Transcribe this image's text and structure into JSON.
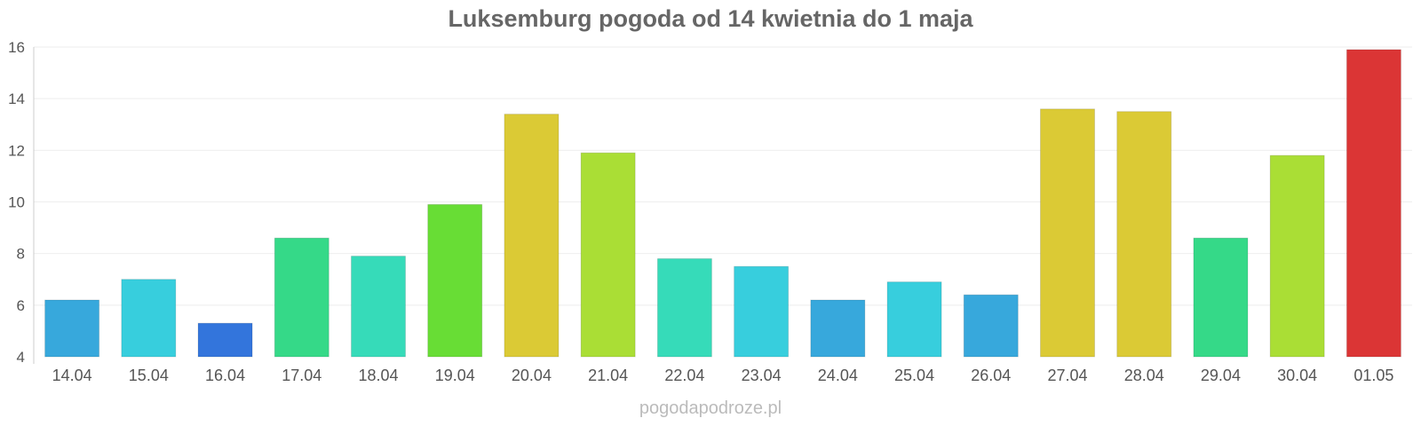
{
  "title": "Luksemburg pogoda od 14 kwietnia do 1 maja",
  "watermark": "pogodapodroze.pl",
  "chart_data": {
    "type": "bar",
    "title": "Luksemburg pogoda od 14 kwietnia do 1 maja",
    "xlabel": "",
    "ylabel": "",
    "ylim": [
      4,
      16
    ],
    "yticks": [
      4,
      6,
      8,
      10,
      12,
      14,
      16
    ],
    "grid": true,
    "legend": "none",
    "categories": [
      "14.04",
      "15.04",
      "16.04",
      "17.04",
      "18.04",
      "19.04",
      "20.04",
      "21.04",
      "22.04",
      "23.04",
      "24.04",
      "25.04",
      "26.04",
      "27.04",
      "28.04",
      "29.04",
      "30.04",
      "01.05"
    ],
    "values": [
      6.2,
      7.0,
      5.3,
      8.6,
      7.9,
      9.9,
      13.4,
      11.9,
      7.8,
      7.5,
      6.2,
      6.9,
      6.4,
      13.6,
      13.5,
      8.6,
      11.8,
      15.9
    ],
    "colors": [
      "#37a8dc",
      "#37cedd",
      "#3375dc",
      "#35d988",
      "#36dbb9",
      "#68dd35",
      "#dbca35",
      "#aade35",
      "#36dbb9",
      "#37cedd",
      "#37a8dc",
      "#37cedd",
      "#37a8dc",
      "#dbca35",
      "#dbca35",
      "#35d988",
      "#aade35",
      "#db3535"
    ]
  }
}
